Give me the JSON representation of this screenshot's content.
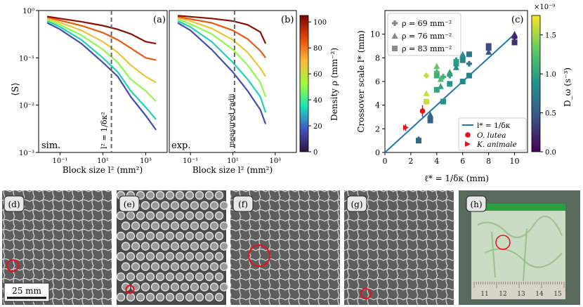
{
  "panel_a": {
    "label": "(a)",
    "corner_tag": "sim.",
    "ylabel": "⟨S⟩",
    "xlabel": "Block size l² (mm²)",
    "xticks": [
      "10⁻¹",
      "10¹",
      "10³"
    ],
    "yticks": [
      "10⁰",
      "10⁻¹",
      "10⁻²",
      "10⁻³"
    ],
    "marker_label": "l² = 1/δκ²"
  },
  "panel_b": {
    "label": "(b)",
    "corner_tag": "exp.",
    "xlabel": "Block size l² (mm²)",
    "xticks": [
      "10⁻¹",
      "10¹",
      "10³"
    ],
    "marker_label": "measured radii"
  },
  "density_colorbar": {
    "label": "Density ρ (mm⁻²)",
    "ticks": [
      "0",
      "20",
      "40",
      "60",
      "80",
      "100"
    ],
    "colors": [
      "#30123b",
      "#4454c4",
      "#1ae4b6",
      "#a2fc3c",
      "#faba39",
      "#e4460a",
      "#7a0403"
    ]
  },
  "panel_c": {
    "label": "(c)",
    "ylabel": "Crossover scale l* (mm)",
    "xlabel": "ℓ* = 1/δκ (mm)",
    "legend_top": [
      {
        "marker": "plus",
        "label": "ρ = 69 mm⁻²"
      },
      {
        "marker": "triangle",
        "label": "ρ = 76 mm⁻²"
      },
      {
        "marker": "square",
        "label": "ρ = 83 mm⁻²"
      }
    ],
    "legend_bottom": [
      {
        "marker": "line",
        "label": "l* = 1/δκ"
      },
      {
        "marker": "circle",
        "label": "O. lutea"
      },
      {
        "marker": "red-triangle",
        "label": "K. animale"
      }
    ],
    "fit_color": "#1f77b4",
    "special_color": "#e8101a"
  },
  "dw_colorbar": {
    "label": "D_ω (s⁻³)",
    "exponent": "×10⁻⁹",
    "ticks": [
      "0.0",
      "0.5",
      "1.0",
      "1.5"
    ],
    "colors": [
      "#440154",
      "#3b528b",
      "#21918c",
      "#5ec962",
      "#fde725"
    ]
  },
  "chart_data": [
    {
      "type": "line",
      "title": "(a) sim.",
      "xlabel": "Block size l² (mm²)",
      "ylabel": "⟨S⟩",
      "xscale": "log",
      "yscale": "log",
      "xlim": [
        0.01,
        10000
      ],
      "ylim": [
        0.001,
        1
      ],
      "vline_x": 25,
      "series": [
        {
          "name": "ρ=10",
          "x": [
            0.025,
            0.1,
            1,
            10,
            50,
            200,
            1000,
            3000
          ],
          "values": [
            0.55,
            0.4,
            0.2,
            0.08,
            0.04,
            0.015,
            0.006,
            0.003
          ]
        },
        {
          "name": "ρ=30",
          "x": [
            0.025,
            0.1,
            1,
            10,
            50,
            200,
            1000,
            3000
          ],
          "values": [
            0.6,
            0.45,
            0.24,
            0.1,
            0.05,
            0.02,
            0.009,
            0.005
          ]
        },
        {
          "name": "ρ=50",
          "x": [
            0.025,
            0.1,
            1,
            10,
            50,
            200,
            1000,
            3000
          ],
          "values": [
            0.64,
            0.5,
            0.3,
            0.15,
            0.08,
            0.035,
            0.02,
            0.012
          ]
        },
        {
          "name": "ρ=70",
          "x": [
            0.025,
            0.1,
            1,
            10,
            50,
            200,
            1000,
            3000
          ],
          "values": [
            0.68,
            0.56,
            0.38,
            0.22,
            0.13,
            0.07,
            0.04,
            0.03
          ]
        },
        {
          "name": "ρ=90",
          "x": [
            0.025,
            0.1,
            1,
            10,
            50,
            200,
            1000,
            3000
          ],
          "values": [
            0.72,
            0.62,
            0.48,
            0.34,
            0.24,
            0.16,
            0.1,
            0.09
          ]
        },
        {
          "name": "ρ=105",
          "x": [
            0.025,
            0.1,
            1,
            10,
            50,
            200,
            1000,
            3000
          ],
          "values": [
            0.75,
            0.68,
            0.58,
            0.48,
            0.4,
            0.32,
            0.22,
            0.2
          ]
        }
      ]
    },
    {
      "type": "line",
      "title": "(b) exp.",
      "xlabel": "Block size l² (mm²)",
      "xscale": "log",
      "yscale": "log",
      "xlim": [
        0.01,
        10000
      ],
      "ylim": [
        0.001,
        1
      ],
      "vline_x": 12,
      "series": [
        {
          "name": "ρ=10",
          "x": [
            0.025,
            0.1,
            1,
            10,
            50,
            200,
            350
          ],
          "values": [
            0.55,
            0.38,
            0.15,
            0.05,
            0.02,
            0.008,
            0.004
          ]
        },
        {
          "name": "ρ=30",
          "x": [
            0.025,
            0.1,
            1,
            10,
            50,
            200,
            350
          ],
          "values": [
            0.6,
            0.45,
            0.22,
            0.08,
            0.035,
            0.015,
            0.007
          ]
        },
        {
          "name": "ρ=50",
          "x": [
            0.025,
            0.1,
            1,
            10,
            50,
            200,
            350
          ],
          "values": [
            0.66,
            0.52,
            0.32,
            0.15,
            0.07,
            0.03,
            0.015
          ]
        },
        {
          "name": "ρ=70",
          "x": [
            0.025,
            0.1,
            1,
            10,
            50,
            200,
            350
          ],
          "values": [
            0.7,
            0.6,
            0.42,
            0.24,
            0.13,
            0.06,
            0.04
          ]
        },
        {
          "name": "ρ=90",
          "x": [
            0.025,
            0.1,
            1,
            10,
            50,
            200,
            350
          ],
          "values": [
            0.74,
            0.66,
            0.55,
            0.38,
            0.25,
            0.14,
            0.1
          ]
        },
        {
          "name": "ρ=105",
          "x": [
            0.025,
            0.1,
            1,
            10,
            50,
            200,
            350
          ],
          "values": [
            0.78,
            0.74,
            0.68,
            0.6,
            0.5,
            0.35,
            0.2
          ]
        }
      ]
    },
    {
      "type": "scatter",
      "title": "(c)",
      "xlabel": "ℓ* = 1/δκ (mm)",
      "ylabel": "Crossover scale l* (mm)",
      "xlim": [
        0,
        11
      ],
      "ylim": [
        0,
        12
      ],
      "xticks": [
        0,
        2,
        4,
        6,
        8,
        10
      ],
      "yticks": [
        0,
        2,
        4,
        6,
        8,
        10
      ],
      "fit_line": {
        "x": [
          0,
          10
        ],
        "y": [
          0,
          10
        ]
      },
      "points": [
        {
          "x": 2.6,
          "y": 1.1,
          "m": "plus",
          "c": 0.55
        },
        {
          "x": 2.6,
          "y": 1.0,
          "m": "square",
          "c": 0.6
        },
        {
          "x": 3.5,
          "y": 3.2,
          "m": "triangle",
          "c": 0.55
        },
        {
          "x": 3.5,
          "y": 2.9,
          "m": "plus",
          "c": 0.6
        },
        {
          "x": 3.5,
          "y": 2.7,
          "m": "square",
          "c": 0.55
        },
        {
          "x": 3.2,
          "y": 4.3,
          "m": "square",
          "c": 1.6
        },
        {
          "x": 3.2,
          "y": 5.0,
          "m": "triangle",
          "c": 1.6
        },
        {
          "x": 3.2,
          "y": 6.5,
          "m": "diamond",
          "c": 1.6
        },
        {
          "x": 4.0,
          "y": 7.3,
          "m": "triangle",
          "c": 1.3
        },
        {
          "x": 4.0,
          "y": 6.8,
          "m": "plus",
          "c": 1.2
        },
        {
          "x": 4.0,
          "y": 6.5,
          "m": "square",
          "c": 1.1
        },
        {
          "x": 4.0,
          "y": 5.3,
          "m": "square",
          "c": 1.0
        },
        {
          "x": 4.3,
          "y": 5.6,
          "m": "triangle",
          "c": 1.0
        },
        {
          "x": 4.3,
          "y": 6.2,
          "m": "triangle",
          "c": 1.2
        },
        {
          "x": 4.5,
          "y": 6.4,
          "m": "plus",
          "c": 1.1
        },
        {
          "x": 4.5,
          "y": 4.3,
          "m": "square",
          "c": 0.9
        },
        {
          "x": 5.0,
          "y": 5.8,
          "m": "square",
          "c": 0.9
        },
        {
          "x": 5.0,
          "y": 6.5,
          "m": "plus",
          "c": 1.0
        },
        {
          "x": 5.0,
          "y": 6.8,
          "m": "triangle",
          "c": 1.0
        },
        {
          "x": 5.5,
          "y": 7.5,
          "m": "square",
          "c": 0.95
        },
        {
          "x": 5.5,
          "y": 7.8,
          "m": "plus",
          "c": 0.95
        },
        {
          "x": 5.5,
          "y": 7.2,
          "m": "triangle",
          "c": 0.85
        },
        {
          "x": 6.0,
          "y": 8.3,
          "m": "triangle",
          "c": 0.85
        },
        {
          "x": 6.0,
          "y": 8.0,
          "m": "plus",
          "c": 0.9
        },
        {
          "x": 6.0,
          "y": 7.8,
          "m": "square",
          "c": 0.8
        },
        {
          "x": 6.5,
          "y": 8.3,
          "m": "square",
          "c": 0.7
        },
        {
          "x": 6.5,
          "y": 7.5,
          "m": "plus",
          "c": 0.7
        },
        {
          "x": 6.5,
          "y": 6.5,
          "m": "square",
          "c": 0.75
        },
        {
          "x": 6.0,
          "y": 6.0,
          "m": "square",
          "c": 0.85
        },
        {
          "x": 8.0,
          "y": 9.0,
          "m": "square",
          "c": 0.4
        },
        {
          "x": 8.0,
          "y": 8.7,
          "m": "plus",
          "c": 0.4
        },
        {
          "x": 8.0,
          "y": 8.5,
          "m": "triangle",
          "c": 0.45
        },
        {
          "x": 10.0,
          "y": 10.0,
          "m": "triangle",
          "c": 0.2
        },
        {
          "x": 10.0,
          "y": 9.7,
          "m": "plus",
          "c": 0.2
        },
        {
          "x": 10.0,
          "y": 9.3,
          "m": "square",
          "c": 0.25
        }
      ],
      "organisms": [
        {
          "name": "O. lutea",
          "x": 2.9,
          "y": 3.5,
          "yerr": 0.5,
          "m": "circle"
        },
        {
          "name": "K. animale",
          "x": 1.6,
          "y": 2.1,
          "yerr": 0.3,
          "m": "red-triangle"
        }
      ]
    }
  ],
  "photos": [
    {
      "label": "(d)",
      "kind": "network",
      "scale_bar": "25 mm"
    },
    {
      "label": "(e)",
      "kind": "lattice"
    },
    {
      "label": "(f)",
      "kind": "network"
    },
    {
      "label": "(g)",
      "kind": "network"
    },
    {
      "label": "(h)",
      "kind": "jar",
      "ruler_numbers": [
        "11",
        "12",
        "13",
        "14",
        "15"
      ]
    }
  ]
}
